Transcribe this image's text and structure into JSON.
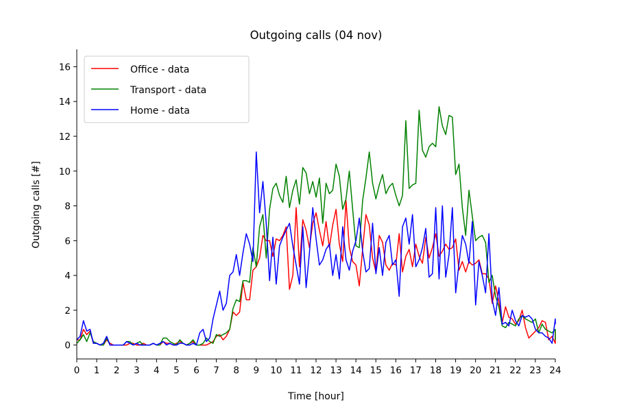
{
  "chart_data": {
    "type": "line",
    "title": "Outgoing calls (04 nov)",
    "xlabel": "Time [hour]",
    "ylabel": "Outgoing calls [#]",
    "xlim": [
      0,
      24
    ],
    "ylim": [
      -0.8,
      17
    ],
    "x_ticks": [
      "0",
      "1",
      "2",
      "3",
      "4",
      "5",
      "6",
      "7",
      "8",
      "9",
      "10",
      "11",
      "12",
      "13",
      "14",
      "15",
      "16",
      "17",
      "18",
      "19",
      "20",
      "21",
      "22",
      "23",
      "24"
    ],
    "y_ticks": [
      "0",
      "2",
      "4",
      "6",
      "8",
      "10",
      "12",
      "14",
      "16"
    ],
    "grid": false,
    "legend": "upper-left",
    "x_step": 0.1667,
    "series": [
      {
        "name": "Office - data",
        "color": "#ff0000",
        "values": [
          0.3,
          0.3,
          0.9,
          0.6,
          0.8,
          0.1,
          0.1,
          0.0,
          0.0,
          0.3,
          0.1,
          0.0,
          0.0,
          0.0,
          0.0,
          0.0,
          0.1,
          0.1,
          0.0,
          0.0,
          0.1,
          0.0,
          0.0,
          0.1,
          0.0,
          0.0,
          0.2,
          0.1,
          0.1,
          0.0,
          0.1,
          0.2,
          0.1,
          0.0,
          0.1,
          0.2,
          0.0,
          0.0,
          0.0,
          0.0,
          0.1,
          0.2,
          0.5,
          0.6,
          0.3,
          0.5,
          0.9,
          1.9,
          1.7,
          1.9,
          3.6,
          2.6,
          2.6,
          4.3,
          4.5,
          5.0,
          6.3,
          6.0,
          6.0,
          5.1,
          6.1,
          6.0,
          6.3,
          6.8,
          3.2,
          4.0,
          7.9,
          4.5,
          7.2,
          6.6,
          5.6,
          7.0,
          7.6,
          6.6,
          5.7,
          7.1,
          5.6,
          6.9,
          7.8,
          5.8,
          4.8,
          8.3,
          5.6,
          4.8,
          4.6,
          3.4,
          5.5,
          7.5,
          6.9,
          5.0,
          4.2,
          6.3,
          5.9,
          4.6,
          4.3,
          4.7,
          4.6,
          6.4,
          4.2,
          5.1,
          5.5,
          4.5,
          5.8,
          5.1,
          4.7,
          6.2,
          5.0,
          5.6,
          6.4,
          5.1,
          5.4,
          5.8,
          5.5,
          5.6,
          6.1,
          4.3,
          4.8,
          4.2,
          4.8,
          4.6,
          4.7,
          4.9,
          4.1,
          4.1,
          3.8,
          2.4,
          3.4,
          2.5,
          1.3,
          2.2,
          1.6,
          1.5,
          1.2,
          1.4,
          2.0,
          1.0,
          0.4,
          0.6,
          0.8,
          1.0,
          1.4,
          1.3,
          0.3,
          0.5,
          0.1,
          0.7,
          0.4,
          0.2,
          0.8,
          0.2
        ]
      },
      {
        "name": "Transport - data",
        "color": "#008000",
        "values": [
          0.1,
          0.3,
          0.6,
          0.2,
          0.7,
          0.2,
          0.1,
          0.0,
          0.0,
          0.4,
          0.0,
          0.0,
          0.0,
          0.0,
          0.0,
          0.2,
          0.2,
          0.0,
          0.1,
          0.2,
          0.0,
          0.0,
          0.0,
          0.1,
          0.0,
          0.0,
          0.4,
          0.4,
          0.2,
          0.1,
          0.0,
          0.3,
          0.1,
          0.0,
          0.1,
          0.3,
          0.0,
          0.0,
          0.1,
          0.4,
          0.2,
          0.1,
          0.6,
          0.5,
          0.6,
          0.7,
          0.9,
          2.1,
          2.6,
          2.5,
          3.7,
          3.7,
          3.6,
          5.6,
          4.5,
          6.8,
          7.5,
          5.0,
          7.8,
          9.0,
          9.3,
          8.6,
          8.2,
          9.7,
          7.9,
          8.9,
          9.5,
          8.1,
          10.2,
          9.9,
          8.7,
          9.4,
          8.5,
          9.6,
          7.0,
          9.3,
          8.7,
          8.9,
          10.4,
          9.7,
          7.8,
          8.4,
          10.0,
          7.8,
          5.7,
          5.6,
          8.3,
          9.6,
          11.1,
          9.3,
          8.4,
          9.2,
          9.8,
          8.7,
          9.1,
          9.3,
          8.6,
          8.0,
          8.6,
          12.9,
          9.0,
          9.2,
          9.3,
          13.5,
          11.2,
          10.8,
          11.4,
          11.6,
          11.4,
          13.7,
          12.6,
          12.1,
          13.2,
          13.1,
          9.8,
          10.4,
          7.9,
          6.3,
          8.9,
          7.4,
          6.0,
          6.2,
          6.3,
          5.9,
          3.6,
          4.0,
          2.8,
          2.2,
          1.1,
          1.0,
          1.3,
          1.2,
          1.1,
          1.5,
          1.7,
          1.5,
          1.4,
          1.3,
          1.5,
          0.7,
          1.2,
          0.9,
          0.8,
          0.7,
          0.9,
          0.3,
          0.4,
          0.3
        ]
      },
      {
        "name": "Home - data",
        "color": "#0000ff",
        "values": [
          0.3,
          0.5,
          1.4,
          0.8,
          0.9,
          0.1,
          0.1,
          0.0,
          0.1,
          0.5,
          0.0,
          0.0,
          0.0,
          0.0,
          0.0,
          0.2,
          0.1,
          0.0,
          0.1,
          0.0,
          0.0,
          0.0,
          0.0,
          0.1,
          0.0,
          0.1,
          0.2,
          0.0,
          0.1,
          0.0,
          0.0,
          0.1,
          0.1,
          0.0,
          0.0,
          0.1,
          0.0,
          0.7,
          0.9,
          0.2,
          0.4,
          1.5,
          2.3,
          3.1,
          2.0,
          2.4,
          4.0,
          4.2,
          5.2,
          4.0,
          5.3,
          6.4,
          5.8,
          4.8,
          11.1,
          7.6,
          9.4,
          7.0,
          3.7,
          6.2,
          3.5,
          5.7,
          6.2,
          6.6,
          7.0,
          5.7,
          4.6,
          3.5,
          6.8,
          3.3,
          5.3,
          7.9,
          6.1,
          4.6,
          4.9,
          5.5,
          5.8,
          4.0,
          5.2,
          3.8,
          6.8,
          4.9,
          4.3,
          5.4,
          6.0,
          7.3,
          5.4,
          4.2,
          4.4,
          7.0,
          4.1,
          5.6,
          4.0,
          5.9,
          6.3,
          4.6,
          4.9,
          2.8,
          6.8,
          7.3,
          5.8,
          7.5,
          4.5,
          4.9,
          5.6,
          6.7,
          3.9,
          4.1,
          7.9,
          3.8,
          8.0,
          3.9,
          5.2,
          7.9,
          3.0,
          4.7,
          6.3,
          5.8,
          4.7,
          7.1,
          2.3,
          4.8,
          4.0,
          3.0,
          6.4,
          2.6,
          1.7,
          3.3,
          1.2,
          1.3,
          1.1,
          2.0,
          1.4,
          1.1,
          1.7,
          1.6,
          1.7,
          1.5,
          0.9,
          0.7,
          0.7,
          0.5,
          0.4,
          0.1,
          1.5,
          1.2
        ]
      }
    ]
  }
}
